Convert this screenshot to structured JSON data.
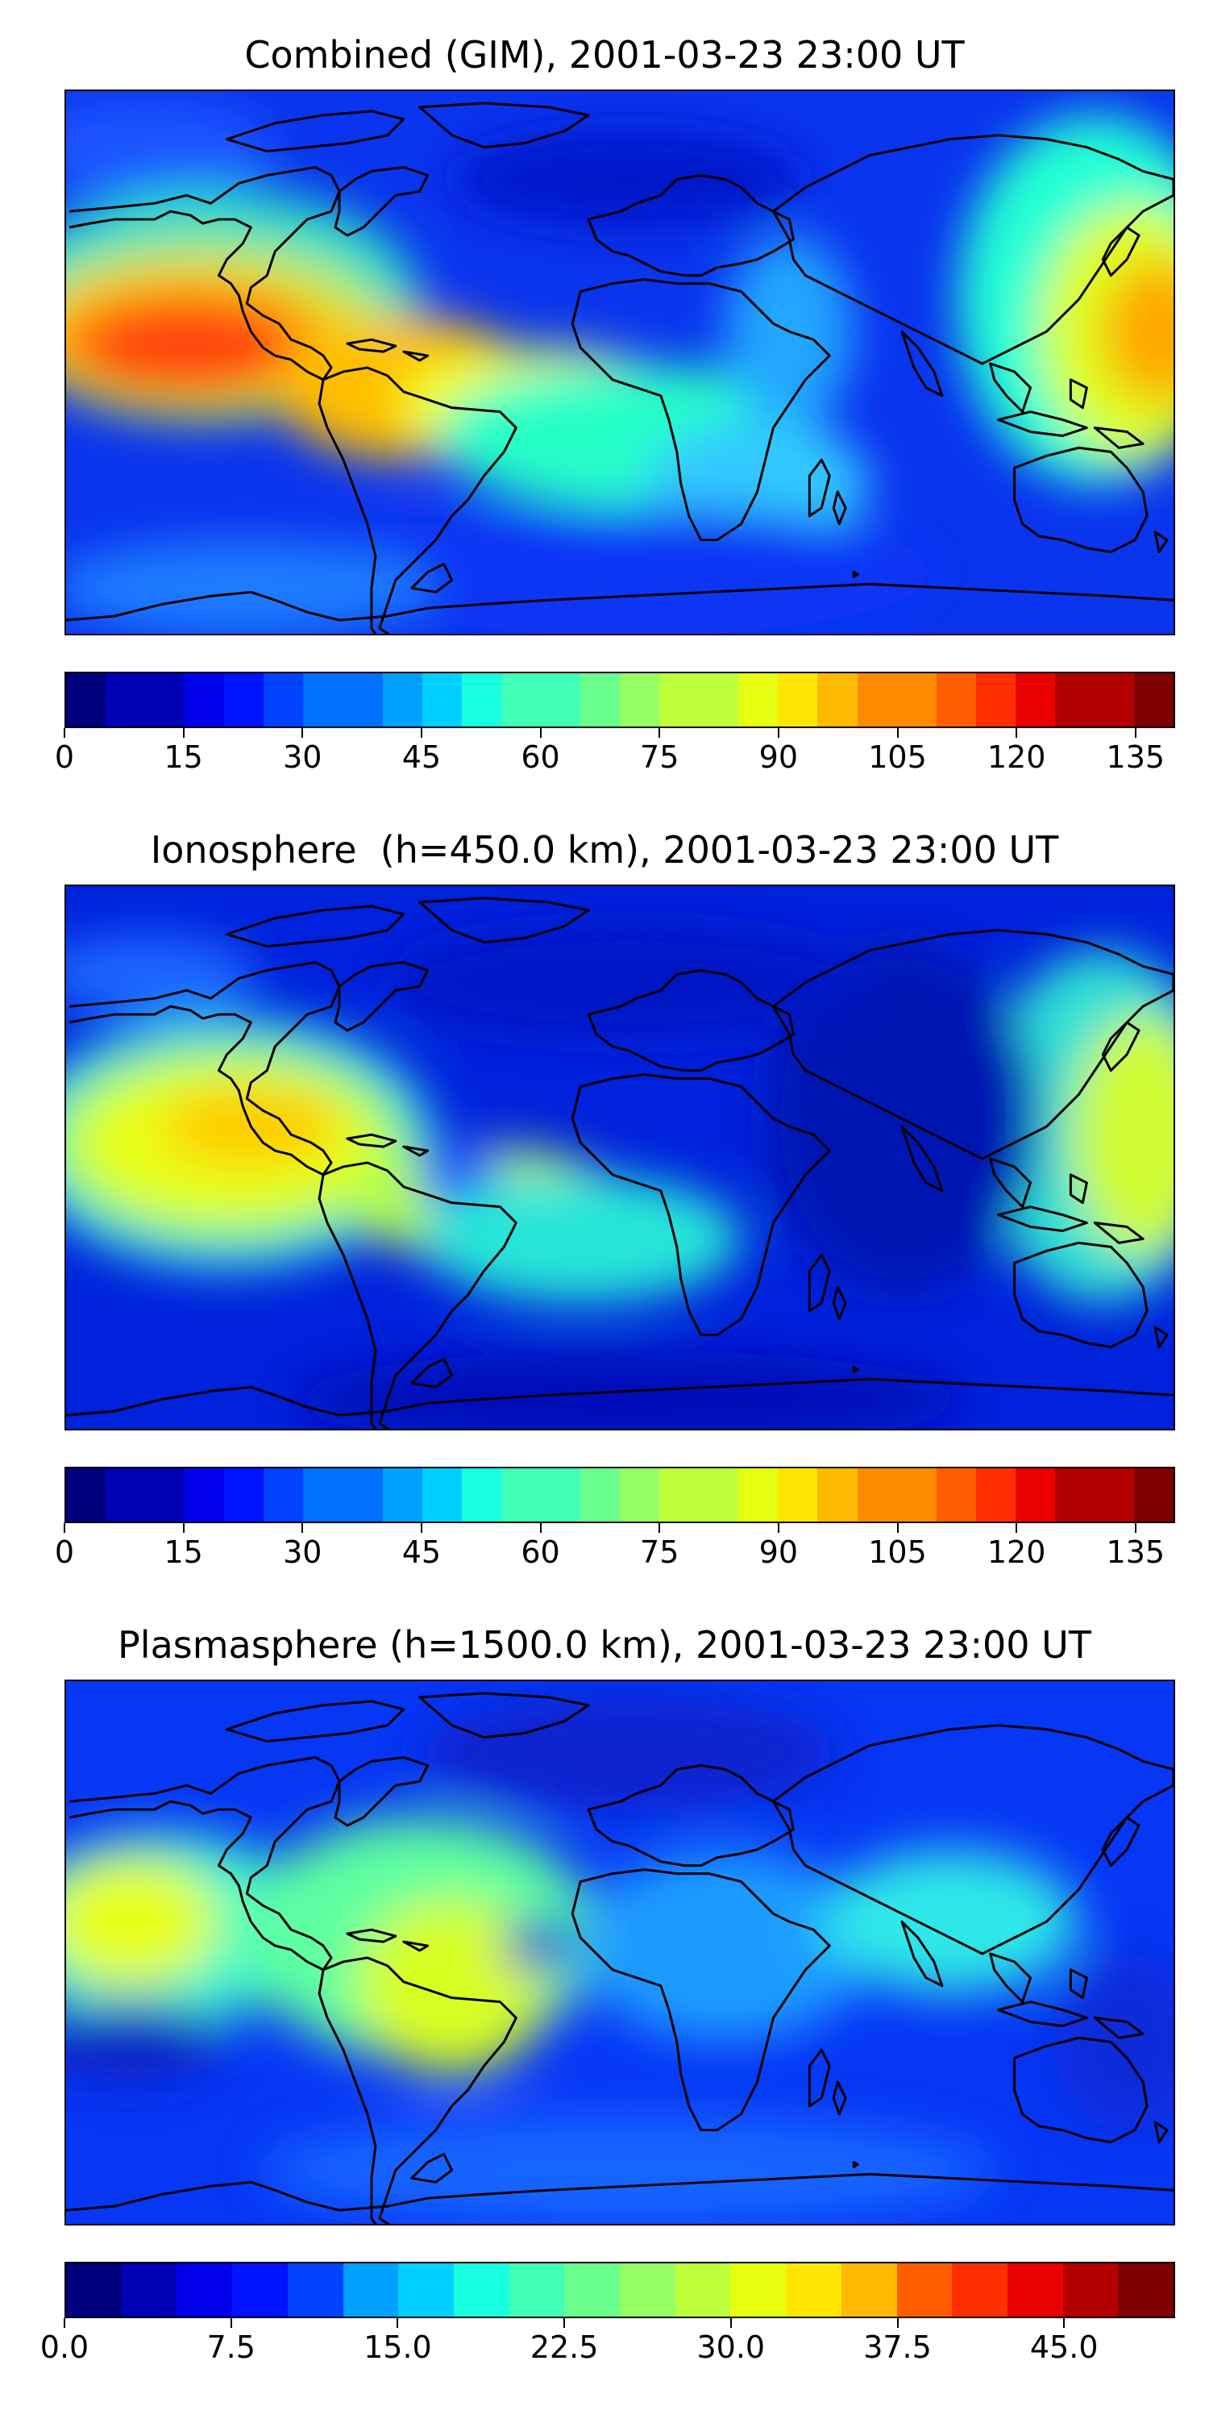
{
  "colors": {
    "jet_scale": [
      "#00007f",
      "#0000b4",
      "#0000ea",
      "#0012ff",
      "#0042ff",
      "#0070ff",
      "#00a0ff",
      "#00d0ff",
      "#17ffdf",
      "#40ffb6",
      "#6aff8d",
      "#93ff63",
      "#bcff3a",
      "#e6ff10",
      "#ffe600",
      "#ffb900",
      "#ff8b00",
      "#ff5d00",
      "#ff2f00",
      "#e90000",
      "#b30000",
      "#7f0000"
    ],
    "coastline": "#000000"
  },
  "panels": [
    {
      "title": "Combined (GIM), 2001-03-23 23:00 UT",
      "colorbar": {
        "levels": 28,
        "range": [
          0,
          140
        ],
        "ticks": [
          {
            "value": 0,
            "label": "0"
          },
          {
            "value": 15,
            "label": "15"
          },
          {
            "value": 30,
            "label": "30"
          },
          {
            "value": 45,
            "label": "45"
          },
          {
            "value": 60,
            "label": "60"
          },
          {
            "value": 75,
            "label": "75"
          },
          {
            "value": 90,
            "label": "90"
          },
          {
            "value": 105,
            "label": "105"
          },
          {
            "value": 120,
            "label": "120"
          },
          {
            "value": 135,
            "label": "135"
          }
        ]
      }
    },
    {
      "title": "Ionosphere  (h=450.0 km), 2001-03-23 23:00 UT",
      "colorbar": {
        "levels": 28,
        "range": [
          0,
          140
        ],
        "ticks": [
          {
            "value": 0,
            "label": "0"
          },
          {
            "value": 15,
            "label": "15"
          },
          {
            "value": 30,
            "label": "30"
          },
          {
            "value": 45,
            "label": "45"
          },
          {
            "value": 60,
            "label": "60"
          },
          {
            "value": 75,
            "label": "75"
          },
          {
            "value": 90,
            "label": "90"
          },
          {
            "value": 105,
            "label": "105"
          },
          {
            "value": 120,
            "label": "120"
          },
          {
            "value": 135,
            "label": "135"
          }
        ]
      }
    },
    {
      "title": "Plasmasphere (h=1500.0 km), 2001-03-23 23:00 UT",
      "colorbar": {
        "levels": 20,
        "range": [
          0,
          50
        ],
        "ticks": [
          {
            "value": 0,
            "label": "0.0"
          },
          {
            "value": 7.5,
            "label": "7.5"
          },
          {
            "value": 15,
            "label": "15.0"
          },
          {
            "value": 22.5,
            "label": "22.5"
          },
          {
            "value": 30,
            "label": "30.0"
          },
          {
            "value": 37.5,
            "label": "37.5"
          },
          {
            "value": 45,
            "label": "45.0"
          }
        ]
      }
    }
  ]
}
